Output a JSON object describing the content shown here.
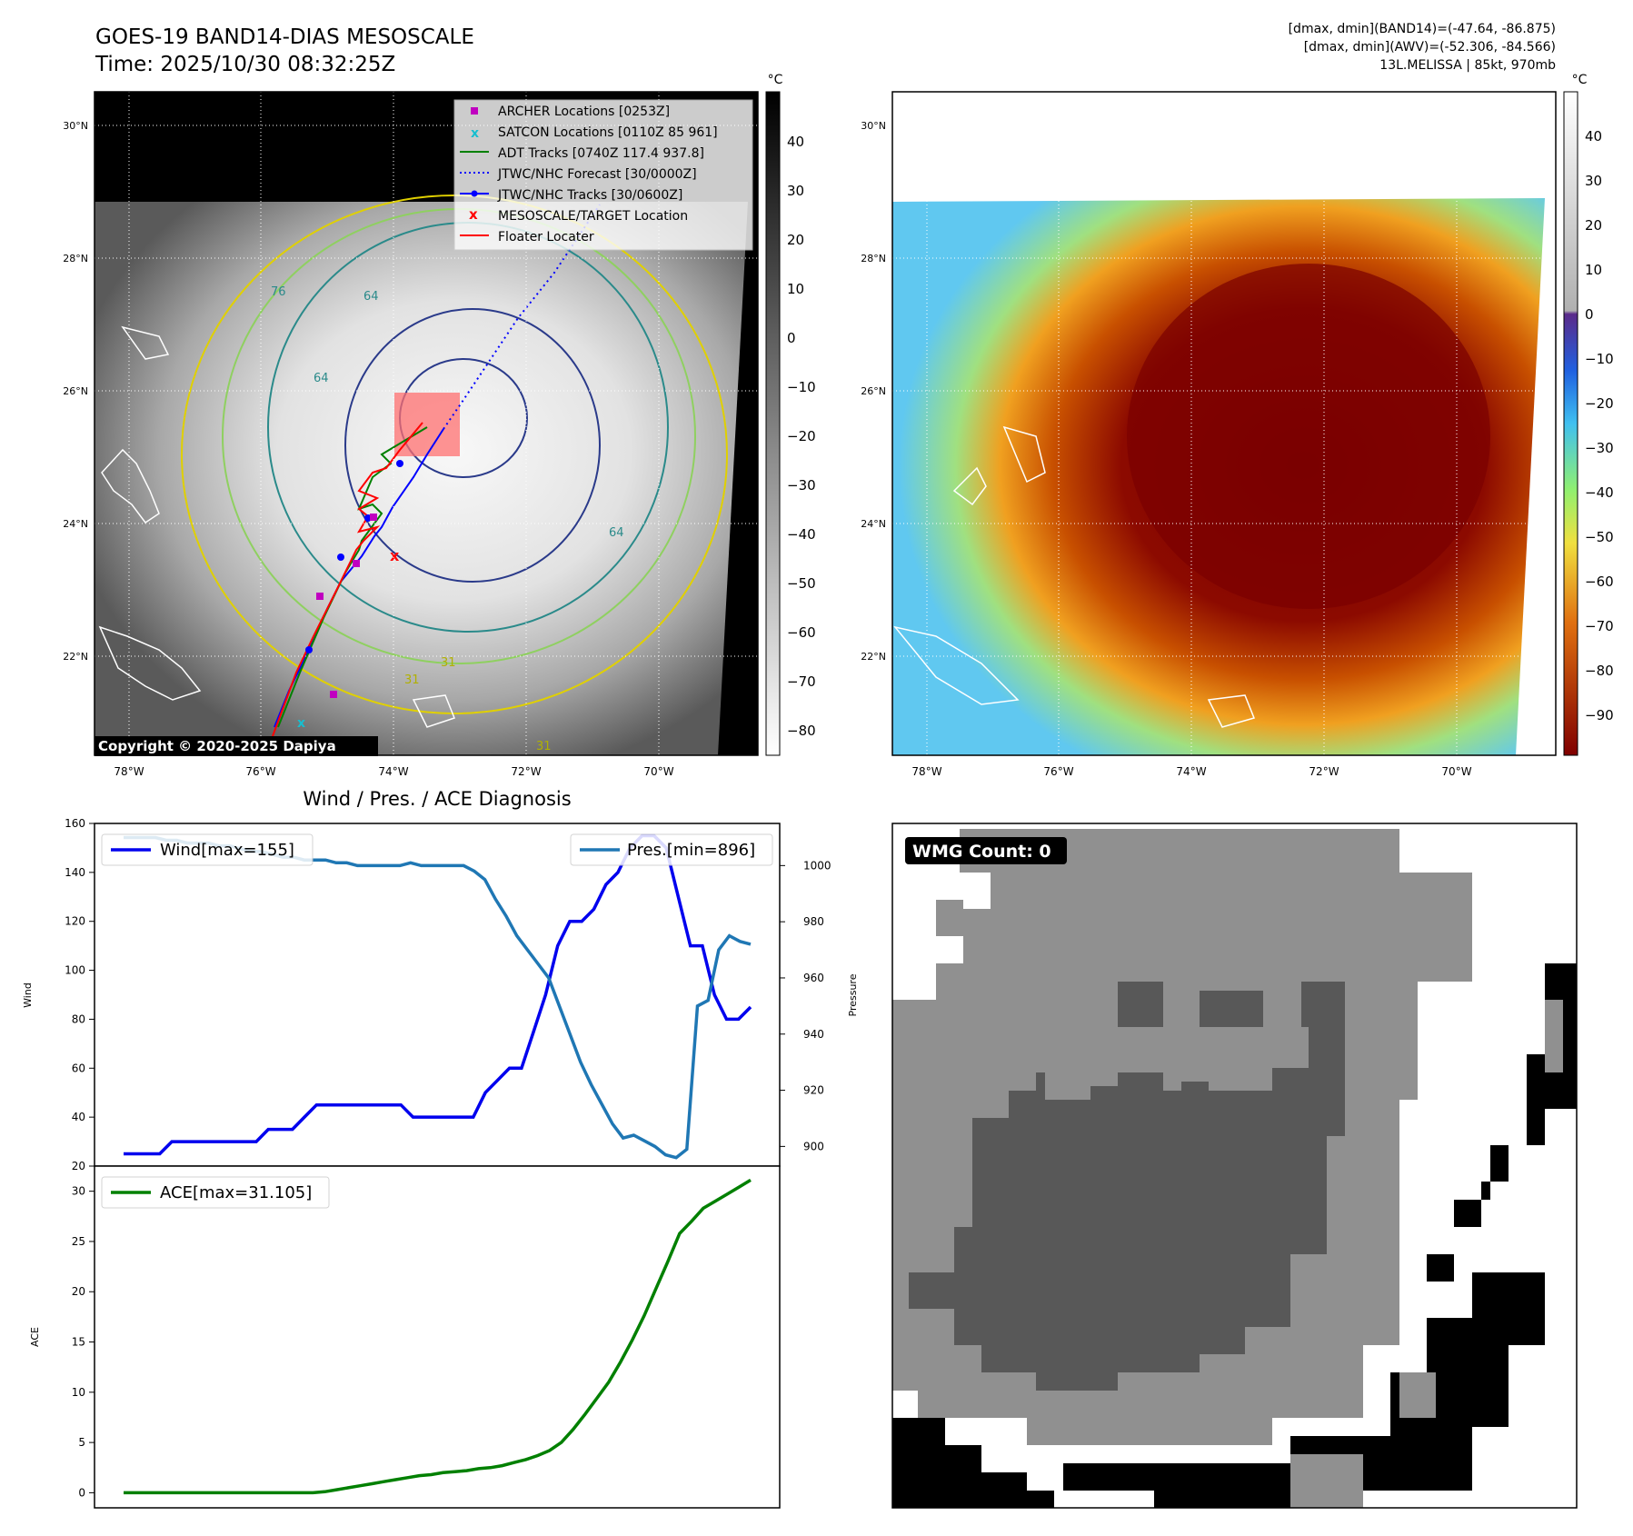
{
  "header": {
    "title": "GOES-19 BAND14-DIAS MESOSCALE",
    "time": "Time: 2025/10/30 08:32:25Z",
    "dmax_band14": "[dmax, dmin](BAND14)=(-47.64, -86.875)",
    "dmax_awv": "[dmax, dmin](AWV)=(-52.306, -84.566)",
    "storm": "13L.MELISSA | 85kt, 970mb"
  },
  "colors": {
    "wind": "#0000ee",
    "pressure": "#1f77b4",
    "ace": "#008000",
    "archer": "#c000c0",
    "satcon": "#17becf",
    "adt": "#008000",
    "forecast": "#0000ff",
    "tracks": "#0000ff",
    "target": "#ff0000",
    "floater": "#ff0000"
  },
  "map_panel": {
    "lat_labels": [
      "30°N",
      "28°N",
      "26°N",
      "24°N",
      "22°N"
    ],
    "lon_labels": [
      "78°W",
      "76°W",
      "74°W",
      "72°W",
      "70°W"
    ],
    "colorbar_unit": "°C",
    "colorbar_ticks": [
      "40",
      "30",
      "20",
      "10",
      "0",
      "−10",
      "−20",
      "−30",
      "−40",
      "−50",
      "−60",
      "−70",
      "−80"
    ],
    "copyright": "Copyright © 2020-2025 Dapiya",
    "legend": [
      {
        "label": "ARCHER Locations [0253Z]",
        "marker": "square",
        "color": "#c000c0"
      },
      {
        "label": "SATCON Locations [0110Z 85 961]",
        "marker": "x",
        "color": "#17becf"
      },
      {
        "label": "ADT Tracks [0740Z 117.4 937.8]",
        "marker": "line",
        "color": "#008000"
      },
      {
        "label": "JTWC/NHC Forecast [30/0000Z]",
        "marker": "dotted",
        "color": "#0000ff"
      },
      {
        "label": "JTWC/NHC Tracks [30/0600Z]",
        "marker": "line-dot",
        "color": "#0000ff"
      },
      {
        "label": "MESOSCALE/TARGET Location",
        "marker": "x",
        "color": "#ff0000"
      },
      {
        "label": "Floater Locater",
        "marker": "line",
        "color": "#ff0000"
      }
    ],
    "contour_labels": [
      "76",
      "64",
      "64",
      "31",
      "31",
      "64",
      "31"
    ]
  },
  "awv_panel": {
    "lat_labels": [
      "30°N",
      "28°N",
      "26°N",
      "24°N",
      "22°N"
    ],
    "lon_labels": [
      "78°W",
      "76°W",
      "74°W",
      "72°W",
      "70°W"
    ],
    "colorbar_unit": "°C",
    "colorbar_ticks": [
      "40",
      "30",
      "20",
      "10",
      "0",
      "−10",
      "−20",
      "−30",
      "−40",
      "−50",
      "−60",
      "−70",
      "−80",
      "−90"
    ]
  },
  "wmg_panel": {
    "label": "WMG Count: 0"
  },
  "chart_data": [
    {
      "type": "line",
      "title": "Wind / Pres. / ACE Diagnosis",
      "ylabel": "Wind",
      "ylim": [
        20,
        160
      ],
      "yticks": [
        20,
        40,
        60,
        80,
        100,
        120,
        140,
        160
      ],
      "series": [
        {
          "name": "Wind",
          "legend": "Wind[max=155]",
          "values": [
            25,
            25,
            25,
            25,
            30,
            30,
            30,
            30,
            30,
            30,
            30,
            30,
            35,
            35,
            35,
            40,
            45,
            45,
            45,
            45,
            45,
            45,
            45,
            45,
            40,
            40,
            40,
            40,
            40,
            40,
            50,
            55,
            60,
            60,
            75,
            90,
            110,
            120,
            120,
            125,
            135,
            140,
            150,
            155,
            155,
            150,
            130,
            110,
            110,
            90,
            80,
            80,
            85
          ]
        }
      ]
    },
    {
      "type": "line",
      "ylabel": "Pressure",
      "ylim": [
        893,
        1015
      ],
      "yticks": [
        900,
        920,
        940,
        960,
        980,
        1000
      ],
      "series": [
        {
          "name": "Pressure",
          "legend": "Pres.[min=896]",
          "values": [
            1010,
            1010,
            1010,
            1010,
            1009,
            1009,
            1008,
            1008,
            1008,
            1007,
            1007,
            1006,
            1005,
            1005,
            1004,
            1003,
            1003,
            1002,
            1002,
            1002,
            1001,
            1001,
            1000,
            1000,
            1000,
            1000,
            1000,
            1001,
            1000,
            1000,
            1000,
            1000,
            1000,
            998,
            995,
            988,
            982,
            975,
            970,
            965,
            960,
            950,
            940,
            930,
            922,
            915,
            908,
            903,
            904,
            902,
            900,
            897,
            896,
            899,
            950,
            952,
            970,
            975,
            973,
            972
          ]
        }
      ]
    },
    {
      "type": "line",
      "ylabel": "ACE",
      "ylim": [
        -1.5,
        32.5
      ],
      "yticks": [
        0,
        5,
        10,
        15,
        20,
        25,
        30
      ],
      "series": [
        {
          "name": "ACE",
          "legend": "ACE[max=31.105]",
          "values": [
            0,
            0,
            0,
            0,
            0,
            0,
            0,
            0,
            0,
            0,
            0,
            0,
            0,
            0,
            0,
            0,
            0,
            0.1,
            0.3,
            0.5,
            0.7,
            0.9,
            1.1,
            1.3,
            1.5,
            1.7,
            1.8,
            2.0,
            2.1,
            2.2,
            2.4,
            2.5,
            2.7,
            3.0,
            3.3,
            3.7,
            4.2,
            5.0,
            6.3,
            7.8,
            9.4,
            11.0,
            13.0,
            15.2,
            17.6,
            20.3,
            23.0,
            25.8,
            27.0,
            28.3,
            29.0,
            29.7,
            30.4,
            31.105
          ]
        }
      ]
    }
  ]
}
